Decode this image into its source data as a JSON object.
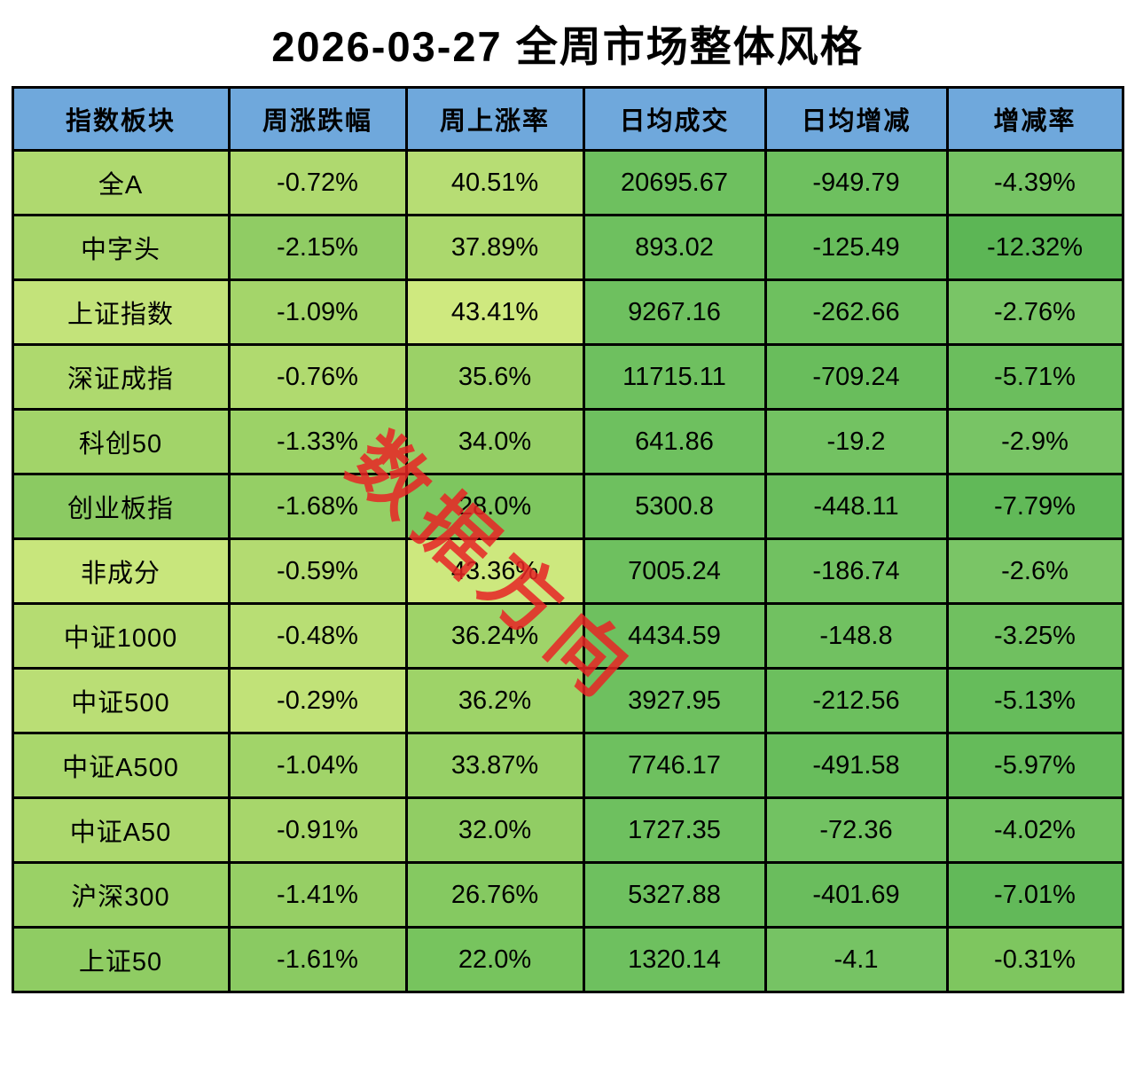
{
  "page": {
    "title": "2026-03-27 全周市场整体风格",
    "watermark": "数据方向"
  },
  "colors": {
    "header_bg": "#6fa8dc",
    "border": "#000000",
    "watermark": "#e82525",
    "title_text": "#000000"
  },
  "chart_data": {
    "type": "table",
    "title": "2026-03-27 全周市场整体风格",
    "columns": [
      "指数板块",
      "周涨跌幅",
      "周上涨率",
      "日均成交",
      "日均增减",
      "增减率"
    ],
    "rows": [
      {
        "cells": [
          "全A",
          "-0.72%",
          "40.51%",
          "20695.67",
          "-949.79",
          "-4.39%"
        ],
        "colors": [
          "#afd96f",
          "#afd96f",
          "#b7dd74",
          "#6ec05f",
          "#6ec05f",
          "#76c364"
        ]
      },
      {
        "cells": [
          "中字头",
          "-2.15%",
          "37.89%",
          "893.02",
          "-125.49",
          "-12.32%"
        ],
        "colors": [
          "#a8d66c",
          "#90cc64",
          "#abd86d",
          "#6ec05f",
          "#67bc5b",
          "#5cb655"
        ]
      },
      {
        "cells": [
          "上证指数",
          "-1.09%",
          "43.41%",
          "9267.16",
          "-262.66",
          "-2.76%"
        ],
        "colors": [
          "#c3e37a",
          "#a4d56a",
          "#cfe97f",
          "#6ec05f",
          "#6ec05f",
          "#79c566"
        ]
      },
      {
        "cells": [
          "深证成指",
          "-0.76%",
          "35.6%",
          "11715.11",
          "-709.24",
          "-5.71%"
        ],
        "colors": [
          "#aed96e",
          "#b0da6f",
          "#9bd167",
          "#6ec05f",
          "#69bd5c",
          "#6bbe5d"
        ]
      },
      {
        "cells": [
          "科创50",
          "-1.33%",
          "34.0%",
          "641.86",
          "-19.2",
          "-2.9%"
        ],
        "colors": [
          "#a2d469",
          "#9cd267",
          "#94ce65",
          "#6ec05f",
          "#73c262",
          "#78c465"
        ]
      },
      {
        "cells": [
          "创业板指",
          "-1.68%",
          "28.0%",
          "5300.8",
          "-448.11",
          "-7.79%"
        ],
        "colors": [
          "#8bca62",
          "#95cf65",
          "#7ec65f",
          "#6ec05f",
          "#6abd5d",
          "#61b958"
        ]
      },
      {
        "cells": [
          "非成分",
          "-0.59%",
          "43.36%",
          "7005.24",
          "-186.74",
          "-2.6%"
        ],
        "colors": [
          "#c8e67c",
          "#b3db71",
          "#cde87e",
          "#6ec05f",
          "#71c161",
          "#7ac566"
        ]
      },
      {
        "cells": [
          "中证1000",
          "-0.48%",
          "36.24%",
          "4434.59",
          "-148.8",
          "-3.25%"
        ],
        "colors": [
          "#b5dc72",
          "#b8de74",
          "#9fd369",
          "#6ec05f",
          "#71c161",
          "#70c060"
        ]
      },
      {
        "cells": [
          "中证500",
          "-0.29%",
          "36.2%",
          "3927.95",
          "-212.56",
          "-5.13%"
        ],
        "colors": [
          "#bade75",
          "#c1e278",
          "#9ed368",
          "#6ec05f",
          "#6cbf5e",
          "#66bc5b"
        ]
      },
      {
        "cells": [
          "中证A500",
          "-1.04%",
          "33.87%",
          "7746.17",
          "-491.58",
          "-5.97%"
        ],
        "colors": [
          "#a9d76c",
          "#a1d469",
          "#97d066",
          "#6ec05f",
          "#68bd5c",
          "#65bb5a"
        ]
      },
      {
        "cells": [
          "中证A50",
          "-0.91%",
          "32.0%",
          "1727.35",
          "-72.36",
          "-4.02%"
        ],
        "colors": [
          "#acd86d",
          "#a7d66b",
          "#91cd64",
          "#6ec05f",
          "#72c262",
          "#6fc05f"
        ]
      },
      {
        "cells": [
          "沪深300",
          "-1.41%",
          "26.76%",
          "5327.88",
          "-401.69",
          "-7.01%"
        ],
        "colors": [
          "#9ad166",
          "#96cf65",
          "#85c961",
          "#6ec05f",
          "#6abd5d",
          "#62b959"
        ]
      },
      {
        "cells": [
          "上证50",
          "-1.61%",
          "22.0%",
          "1320.14",
          "-4.1",
          "-0.31%"
        ],
        "colors": [
          "#8fcc63",
          "#8aca62",
          "#77c45e",
          "#6ec05f",
          "#76c364",
          "#7ec65f"
        ]
      }
    ]
  }
}
